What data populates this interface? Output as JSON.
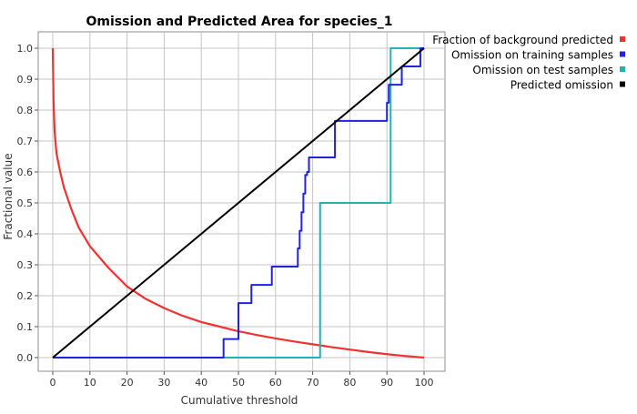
{
  "chart_data": {
    "type": "line",
    "title": "Omission and Predicted Area for species_1",
    "xlabel": "Cumulative threshold",
    "ylabel": "Fractional value",
    "xlim": [
      0,
      100
    ],
    "ylim": [
      0,
      1
    ],
    "xticks": [
      0,
      10,
      20,
      30,
      40,
      50,
      60,
      70,
      80,
      90,
      100
    ],
    "yticks": [
      0.0,
      0.1,
      0.2,
      0.3,
      0.4,
      0.5,
      0.6,
      0.7,
      0.8,
      0.9,
      1.0
    ],
    "xtick_labels": [
      "0",
      "10",
      "20",
      "30",
      "40",
      "50",
      "60",
      "70",
      "80",
      "90",
      "100"
    ],
    "ytick_labels": [
      "0.0",
      "0.1",
      "0.2",
      "0.3",
      "0.4",
      "0.5",
      "0.6",
      "0.7",
      "0.8",
      "0.9",
      "1.0"
    ],
    "grid": true,
    "legend_position": "top-right",
    "series": [
      {
        "name": "Fraction of background predicted",
        "color": "#ee3333",
        "step": false,
        "x": [
          0,
          0.2,
          0.5,
          1,
          2,
          3,
          5,
          7,
          10,
          15,
          20,
          25,
          30,
          35,
          40,
          45,
          50,
          55,
          60,
          65,
          70,
          75,
          80,
          85,
          90,
          95,
          100
        ],
        "y": [
          1.0,
          0.83,
          0.73,
          0.66,
          0.6,
          0.55,
          0.48,
          0.42,
          0.36,
          0.29,
          0.23,
          0.19,
          0.16,
          0.135,
          0.115,
          0.1,
          0.085,
          0.073,
          0.062,
          0.052,
          0.043,
          0.034,
          0.026,
          0.018,
          0.011,
          0.005,
          0.0
        ]
      },
      {
        "name": "Omission on training samples",
        "color": "#2222dd",
        "step": true,
        "x": [
          0,
          46,
          50,
          53.5,
          59,
          66,
          66.5,
          67,
          67.5,
          68,
          68.5,
          69,
          69.5,
          76,
          90,
          90.5,
          94,
          97.5,
          99,
          100
        ],
        "y": [
          0.0,
          0.06,
          0.176,
          0.235,
          0.294,
          0.353,
          0.41,
          0.47,
          0.53,
          0.59,
          0.6,
          0.647,
          0.647,
          0.765,
          0.824,
          0.882,
          0.941,
          0.941,
          1.0,
          1.0
        ]
      },
      {
        "name": "Omission on test samples",
        "color": "#22b2b2",
        "step": true,
        "x": [
          0,
          72,
          91,
          100
        ],
        "y": [
          0.0,
          0.5,
          1.0,
          1.0
        ]
      },
      {
        "name": "Predicted omission",
        "color": "#000000",
        "step": false,
        "x": [
          0,
          100
        ],
        "y": [
          0,
          1
        ]
      }
    ]
  }
}
